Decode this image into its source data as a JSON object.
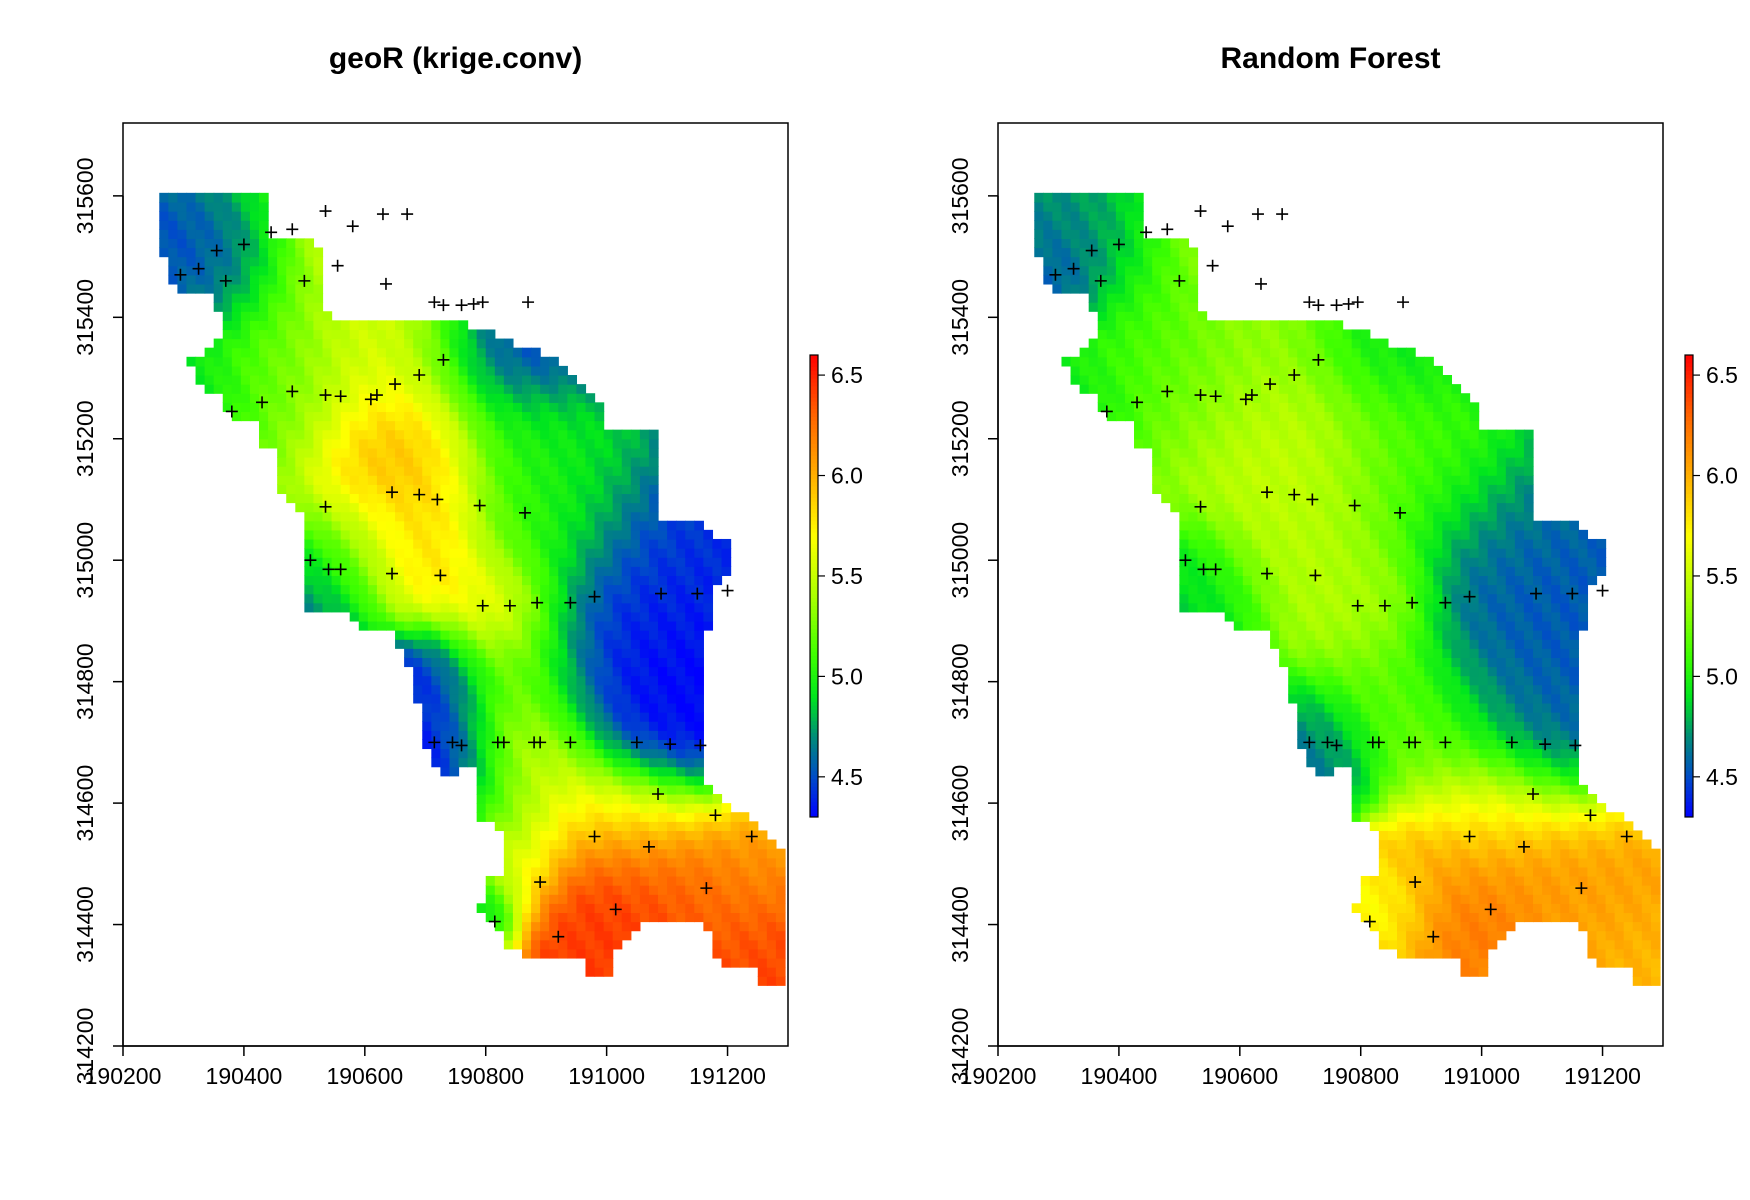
{
  "chart_data": [
    {
      "type": "heatmap",
      "title": "geoR (krige.conv)",
      "xlabel": "",
      "ylabel": "",
      "xlim": [
        190200,
        191300
      ],
      "ylim": [
        314200,
        315720
      ],
      "x_ticks": [
        "190200",
        "190400",
        "190600",
        "190800",
        "191000",
        "191200"
      ],
      "y_ticks": [
        "314200",
        "314400",
        "314600",
        "314800",
        "315000",
        "315200",
        "315400",
        "315600"
      ],
      "colorbar": {
        "range": [
          4.3,
          6.6
        ],
        "ticks": [
          "4.5",
          "5.0",
          "5.5",
          "6.0",
          "6.5"
        ]
      },
      "grid": false,
      "method": "kriging"
    },
    {
      "type": "heatmap",
      "title": "Random Forest",
      "xlabel": "",
      "ylabel": "",
      "xlim": [
        190200,
        191300
      ],
      "ylim": [
        314200,
        315720
      ],
      "x_ticks": [
        "190200",
        "190400",
        "190600",
        "190800",
        "191000",
        "191200"
      ],
      "y_ticks": [
        "314200",
        "314400",
        "314600",
        "314800",
        "315000",
        "315200",
        "315400",
        "315600"
      ],
      "colorbar": {
        "range": [
          4.3,
          6.6
        ],
        "ticks": [
          "4.5",
          "5.0",
          "5.5",
          "6.0",
          "6.5"
        ]
      },
      "grid": false,
      "method": "rf"
    }
  ],
  "sample_points": [
    [
      190295,
      315470
    ],
    [
      190325,
      315480
    ],
    [
      190355,
      315510
    ],
    [
      190370,
      315460
    ],
    [
      190400,
      315520
    ],
    [
      190445,
      315540
    ],
    [
      190480,
      315545
    ],
    [
      190500,
      315460
    ],
    [
      190535,
      315575
    ],
    [
      190555,
      315485
    ],
    [
      190580,
      315550
    ],
    [
      190630,
      315570
    ],
    [
      190635,
      315455
    ],
    [
      190670,
      315570
    ],
    [
      190715,
      315425
    ],
    [
      190730,
      315420
    ],
    [
      190760,
      315420
    ],
    [
      190780,
      315422
    ],
    [
      190795,
      315425
    ],
    [
      190870,
      315425
    ],
    [
      190380,
      315245
    ],
    [
      190430,
      315260
    ],
    [
      190480,
      315278
    ],
    [
      190535,
      315272
    ],
    [
      190560,
      315270
    ],
    [
      190610,
      315265
    ],
    [
      190620,
      315272
    ],
    [
      190650,
      315290
    ],
    [
      190690,
      315305
    ],
    [
      190730,
      315330
    ],
    [
      190535,
      315088
    ],
    [
      190645,
      315112
    ],
    [
      190690,
      315108
    ],
    [
      190720,
      315100
    ],
    [
      190790,
      315090
    ],
    [
      190865,
      315078
    ],
    [
      190510,
      315000
    ],
    [
      190540,
      314985
    ],
    [
      190560,
      314985
    ],
    [
      190645,
      314978
    ],
    [
      190725,
      314975
    ],
    [
      190795,
      314925
    ],
    [
      190840,
      314925
    ],
    [
      190885,
      314930
    ],
    [
      190940,
      314930
    ],
    [
      190980,
      314940
    ],
    [
      191090,
      314945
    ],
    [
      191150,
      314945
    ],
    [
      191200,
      314950
    ],
    [
      190715,
      314700
    ],
    [
      190745,
      314700
    ],
    [
      190760,
      314695
    ],
    [
      190820,
      314700
    ],
    [
      190830,
      314700
    ],
    [
      190880,
      314700
    ],
    [
      190890,
      314700
    ],
    [
      190940,
      314700
    ],
    [
      191050,
      314700
    ],
    [
      191105,
      314697
    ],
    [
      191155,
      314695
    ],
    [
      191085,
      314615
    ],
    [
      191180,
      314580
    ],
    [
      191240,
      314545
    ],
    [
      190980,
      314545
    ],
    [
      191070,
      314528
    ],
    [
      190890,
      314470
    ],
    [
      191165,
      314460
    ],
    [
      191015,
      314425
    ],
    [
      190815,
      314405
    ],
    [
      190920,
      314380
    ]
  ]
}
